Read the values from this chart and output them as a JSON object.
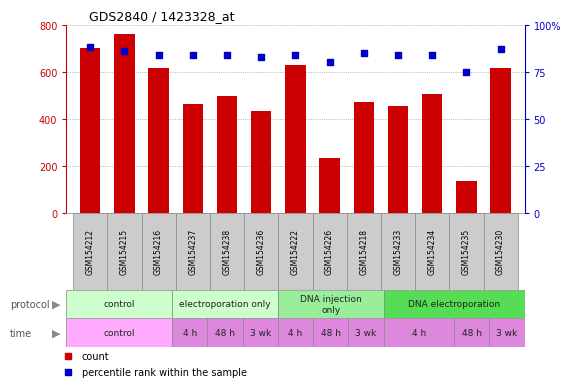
{
  "title": "GDS2840 / 1423328_at",
  "samples": [
    "GSM154212",
    "GSM154215",
    "GSM154216",
    "GSM154237",
    "GSM154238",
    "GSM154236",
    "GSM154222",
    "GSM154226",
    "GSM154218",
    "GSM154233",
    "GSM154234",
    "GSM154235",
    "GSM154230"
  ],
  "counts": [
    700,
    760,
    615,
    465,
    495,
    435,
    630,
    235,
    470,
    455,
    505,
    135,
    615
  ],
  "percentile": [
    88,
    86,
    84,
    84,
    84,
    83,
    84,
    80,
    85,
    84,
    84,
    75,
    87
  ],
  "bar_color": "#cc0000",
  "dot_color": "#0000cc",
  "ylim_left": [
    0,
    800
  ],
  "ylim_right": [
    0,
    100
  ],
  "yticks_left": [
    0,
    200,
    400,
    600,
    800
  ],
  "yticks_right": [
    0,
    25,
    50,
    75,
    100
  ],
  "proto_bounds": [
    {
      "start": 0,
      "end": 3,
      "label": "control",
      "color": "#ccffcc"
    },
    {
      "start": 3,
      "end": 6,
      "label": "electroporation only",
      "color": "#ccffcc"
    },
    {
      "start": 6,
      "end": 9,
      "label": "DNA injection\nonly",
      "color": "#99ee99"
    },
    {
      "start": 9,
      "end": 13,
      "label": "DNA electroporation",
      "color": "#55dd55"
    }
  ],
  "time_bounds": [
    {
      "start": 0,
      "end": 3,
      "label": "control",
      "color": "#ffaaff"
    },
    {
      "start": 3,
      "end": 4,
      "label": "4 h",
      "color": "#dd88dd"
    },
    {
      "start": 4,
      "end": 5,
      "label": "48 h",
      "color": "#dd88dd"
    },
    {
      "start": 5,
      "end": 6,
      "label": "3 wk",
      "color": "#dd88dd"
    },
    {
      "start": 6,
      "end": 7,
      "label": "4 h",
      "color": "#dd88dd"
    },
    {
      "start": 7,
      "end": 8,
      "label": "48 h",
      "color": "#dd88dd"
    },
    {
      "start": 8,
      "end": 9,
      "label": "3 wk",
      "color": "#dd88dd"
    },
    {
      "start": 9,
      "end": 11,
      "label": "4 h",
      "color": "#dd88dd"
    },
    {
      "start": 11,
      "end": 12,
      "label": "48 h",
      "color": "#dd88dd"
    },
    {
      "start": 12,
      "end": 13,
      "label": "3 wk",
      "color": "#dd88dd"
    }
  ],
  "sample_box_color": "#cccccc",
  "sample_box_edge": "#888888",
  "legend_count_color": "#cc0000",
  "legend_dot_color": "#0000cc",
  "background_color": "#ffffff",
  "grid_color": "#888888",
  "label_proto": "protocol",
  "label_time": "time"
}
